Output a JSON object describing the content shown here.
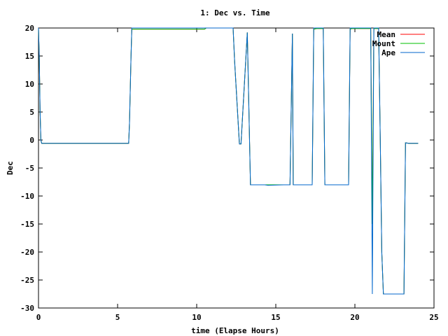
{
  "chart_data": {
    "type": "line",
    "title": "1: Dec vs. Time",
    "xlabel": "time (Elapse Hours)",
    "ylabel": "Dec",
    "xlim": [
      0,
      25
    ],
    "ylim": [
      -30,
      20
    ],
    "xticks": [
      0,
      5,
      10,
      15,
      20,
      25
    ],
    "yticks": [
      20,
      15,
      10,
      5,
      0,
      -5,
      -10,
      -15,
      -20,
      -25,
      -30
    ],
    "grid": false,
    "legend_position": "top-right",
    "series": [
      {
        "name": "Mean",
        "color": "#ff0000",
        "x": [
          0.0,
          0.05,
          0.1,
          0.15,
          0.2,
          0.3,
          0.8,
          0.9,
          5.7,
          5.75,
          5.85,
          5.9,
          10.5,
          10.6,
          12.3,
          12.4,
          12.7,
          12.8,
          13.2,
          13.4,
          13.6,
          14.3,
          14.5,
          15.5,
          15.9,
          16.05,
          16.1,
          16.2,
          17.2,
          17.3,
          17.4,
          17.6,
          17.65,
          18.0,
          18.1,
          18.3,
          18.5,
          19.6,
          19.7,
          19.8,
          19.9,
          21.0,
          21.1,
          21.2,
          21.5,
          21.6,
          21.7,
          21.8,
          23.0,
          23.1,
          23.2,
          23.4,
          24.0
        ],
        "y": [
          20.0,
          15.0,
          5.0,
          0.0,
          -0.6,
          -0.6,
          -0.6,
          -0.6,
          -0.6,
          3.0,
          15.0,
          19.8,
          19.8,
          20.0,
          20.0,
          14.0,
          -0.7,
          -0.7,
          19.2,
          -8.0,
          -8.0,
          -8.0,
          -8.0,
          -8.0,
          -8.0,
          19.0,
          -8.0,
          -8.0,
          -8.0,
          -8.0,
          19.8,
          19.9,
          19.9,
          19.9,
          -8.0,
          -8.0,
          -8.0,
          -8.0,
          19.8,
          19.9,
          19.9,
          19.9,
          -15.0,
          19.9,
          19.9,
          0.5,
          -20.0,
          -27.5,
          -27.5,
          -27.5,
          -0.5,
          -0.6,
          -0.6
        ]
      },
      {
        "name": "Mount",
        "color": "#00c000",
        "x": [
          0.0,
          0.05,
          0.1,
          0.15,
          0.2,
          0.3,
          0.8,
          0.9,
          5.7,
          5.75,
          5.85,
          5.9,
          10.5,
          10.6,
          12.3,
          12.4,
          12.7,
          12.8,
          13.2,
          13.4,
          13.6,
          14.3,
          14.5,
          15.5,
          15.9,
          16.05,
          16.1,
          16.2,
          17.2,
          17.3,
          17.4,
          17.6,
          17.65,
          18.0,
          18.1,
          18.3,
          18.5,
          19.6,
          19.7,
          19.8,
          19.9,
          21.0,
          21.1,
          21.2,
          21.5,
          21.6,
          21.7,
          21.8,
          23.0,
          23.1,
          23.2,
          23.4,
          24.0
        ],
        "y": [
          20.0,
          15.0,
          5.0,
          0.0,
          -0.6,
          -0.6,
          -0.6,
          -0.6,
          -0.6,
          3.0,
          15.0,
          19.8,
          19.8,
          20.0,
          20.0,
          14.0,
          -0.7,
          -0.7,
          19.2,
          -8.0,
          -8.0,
          -8.0,
          -8.0,
          -8.0,
          -8.0,
          19.0,
          -8.0,
          -8.0,
          -8.0,
          -8.0,
          19.8,
          19.9,
          19.9,
          19.9,
          -8.0,
          -8.0,
          -8.0,
          -8.0,
          19.8,
          19.9,
          19.9,
          19.9,
          -15.0,
          19.9,
          19.9,
          0.5,
          -20.0,
          -27.5,
          -27.5,
          -27.5,
          -0.5,
          -0.6,
          -0.6
        ]
      },
      {
        "name": "Ape",
        "color": "#0066cc",
        "x": [
          0.0,
          0.05,
          0.1,
          0.15,
          0.2,
          0.3,
          0.8,
          0.9,
          5.7,
          5.75,
          5.85,
          5.9,
          10.5,
          10.6,
          12.3,
          12.4,
          12.7,
          12.8,
          13.2,
          13.4,
          13.6,
          14.3,
          14.5,
          15.5,
          15.9,
          16.05,
          16.1,
          16.2,
          17.2,
          17.3,
          17.4,
          17.6,
          17.65,
          18.0,
          18.1,
          18.3,
          18.5,
          19.6,
          19.7,
          19.8,
          19.9,
          21.0,
          21.1,
          21.2,
          21.5,
          21.6,
          21.7,
          21.8,
          23.0,
          23.1,
          23.2,
          23.4,
          24.0
        ],
        "y": [
          20.0,
          15.0,
          5.0,
          0.0,
          -0.6,
          -0.6,
          -0.6,
          -0.6,
          -0.6,
          3.0,
          15.0,
          20.0,
          20.0,
          20.0,
          20.0,
          14.0,
          -0.7,
          -0.7,
          19.2,
          -8.0,
          -8.0,
          -8.0,
          -8.1,
          -8.0,
          -8.0,
          19.0,
          -8.0,
          -8.0,
          -8.0,
          -8.0,
          20.0,
          20.0,
          20.0,
          20.0,
          -8.0,
          -8.0,
          -8.0,
          -8.0,
          20.0,
          20.0,
          20.0,
          20.0,
          -27.5,
          20.0,
          20.0,
          0.5,
          -20.0,
          -27.5,
          -27.5,
          -27.5,
          -0.5,
          -0.6,
          -0.6
        ]
      }
    ]
  }
}
